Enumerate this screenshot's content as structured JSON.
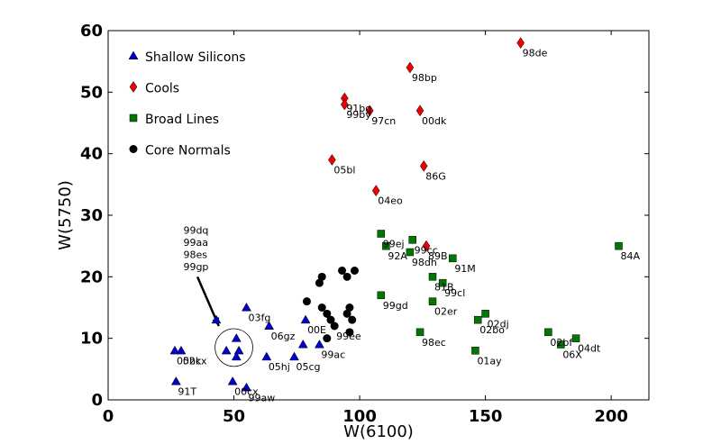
{
  "chart_data": {
    "type": "scatter",
    "xlabel": "W(6100)",
    "ylabel": "W(5750)",
    "xlim": [
      0,
      215
    ],
    "ylim": [
      0,
      60
    ],
    "xticks": [
      0,
      50,
      100,
      150,
      200
    ],
    "yticks": [
      0,
      10,
      20,
      30,
      40,
      50,
      60
    ],
    "grid": false,
    "legend_position": "top-left",
    "series": [
      {
        "name": "Shallow Silicons",
        "marker": "triangle",
        "color": "#0000cc",
        "points": [
          {
            "x": 26.5,
            "y": 8,
            "label": "05hk"
          },
          {
            "x": 29,
            "y": 8,
            "label": "02cx"
          },
          {
            "x": 27,
            "y": 3,
            "label": "91T"
          },
          {
            "x": 43,
            "y": 13
          },
          {
            "x": 47,
            "y": 8
          },
          {
            "x": 49.5,
            "y": 3,
            "label": "00cx"
          },
          {
            "x": 51,
            "y": 10
          },
          {
            "x": 52,
            "y": 8
          },
          {
            "x": 51,
            "y": 7
          },
          {
            "x": 55,
            "y": 2,
            "label": "99aw"
          },
          {
            "x": 55,
            "y": 15,
            "label": "03fg"
          },
          {
            "x": 64,
            "y": 12,
            "label": "06gz"
          },
          {
            "x": 63,
            "y": 7,
            "label": "05hj"
          },
          {
            "x": 74,
            "y": 7,
            "label": "05cg"
          },
          {
            "x": 77.5,
            "y": 9
          },
          {
            "x": 78.5,
            "y": 13,
            "label": "00E"
          },
          {
            "x": 84,
            "y": 9,
            "label": "99ac"
          }
        ]
      },
      {
        "name": "Cools",
        "marker": "diamond",
        "color": "#ee0000",
        "points": [
          {
            "x": 94,
            "y": 49,
            "label": "91bg"
          },
          {
            "x": 94,
            "y": 48,
            "label": "99by"
          },
          {
            "x": 104,
            "y": 47,
            "label": "97cn"
          },
          {
            "x": 120,
            "y": 54,
            "label": "98bp"
          },
          {
            "x": 124,
            "y": 47,
            "label": "00dk"
          },
          {
            "x": 164,
            "y": 58,
            "label": "98de"
          },
          {
            "x": 89,
            "y": 39,
            "label": "05bl"
          },
          {
            "x": 125.5,
            "y": 38,
            "label": "86G"
          },
          {
            "x": 106.5,
            "y": 34,
            "label": "04eo"
          },
          {
            "x": 126.5,
            "y": 25,
            "label": "89B"
          }
        ]
      },
      {
        "name": "Broad Lines",
        "marker": "square",
        "color": "#007700",
        "points": [
          {
            "x": 108.5,
            "y": 27,
            "label": "99ej"
          },
          {
            "x": 110.5,
            "y": 25,
            "label": "92A"
          },
          {
            "x": 121,
            "y": 26,
            "label": "99cc"
          },
          {
            "x": 120,
            "y": 24,
            "label": "98dh"
          },
          {
            "x": 137,
            "y": 23,
            "label": "91M"
          },
          {
            "x": 129,
            "y": 20,
            "label": "81B"
          },
          {
            "x": 133,
            "y": 19,
            "label": "99cl"
          },
          {
            "x": 108.5,
            "y": 17,
            "label": "99gd"
          },
          {
            "x": 129,
            "y": 16,
            "label": "02er"
          },
          {
            "x": 150,
            "y": 14,
            "label": "02dj"
          },
          {
            "x": 147,
            "y": 13,
            "label": "02bo"
          },
          {
            "x": 124,
            "y": 11,
            "label": "98ec"
          },
          {
            "x": 146,
            "y": 8,
            "label": "01ay"
          },
          {
            "x": 175,
            "y": 11,
            "label": "02bf"
          },
          {
            "x": 186,
            "y": 10,
            "label": "04dt"
          },
          {
            "x": 180,
            "y": 9,
            "label": "06X"
          },
          {
            "x": 203,
            "y": 25,
            "label": "84A"
          }
        ]
      },
      {
        "name": "Core Normals",
        "marker": "circle",
        "color": "#000000",
        "points": [
          {
            "x": 85,
            "y": 20
          },
          {
            "x": 84,
            "y": 19
          },
          {
            "x": 79,
            "y": 16
          },
          {
            "x": 85,
            "y": 15
          },
          {
            "x": 87,
            "y": 14
          },
          {
            "x": 88.5,
            "y": 13
          },
          {
            "x": 90,
            "y": 12,
            "label": "99ee"
          },
          {
            "x": 87,
            "y": 10
          },
          {
            "x": 93,
            "y": 21
          },
          {
            "x": 95,
            "y": 20
          },
          {
            "x": 98,
            "y": 21
          },
          {
            "x": 96,
            "y": 15
          },
          {
            "x": 95,
            "y": 14
          },
          {
            "x": 97,
            "y": 13
          },
          {
            "x": 96,
            "y": 11
          }
        ]
      }
    ],
    "annotations": [
      {
        "lines": [
          "99dq",
          "99aa",
          "98es",
          "99gp"
        ],
        "x": 36,
        "y": 27,
        "arrow_from": [
          35.5,
          20
        ],
        "arrow_to": [
          44,
          12
        ]
      }
    ],
    "highlight_circle": {
      "x": 50,
      "y": 8.5,
      "r": 7.5
    }
  }
}
